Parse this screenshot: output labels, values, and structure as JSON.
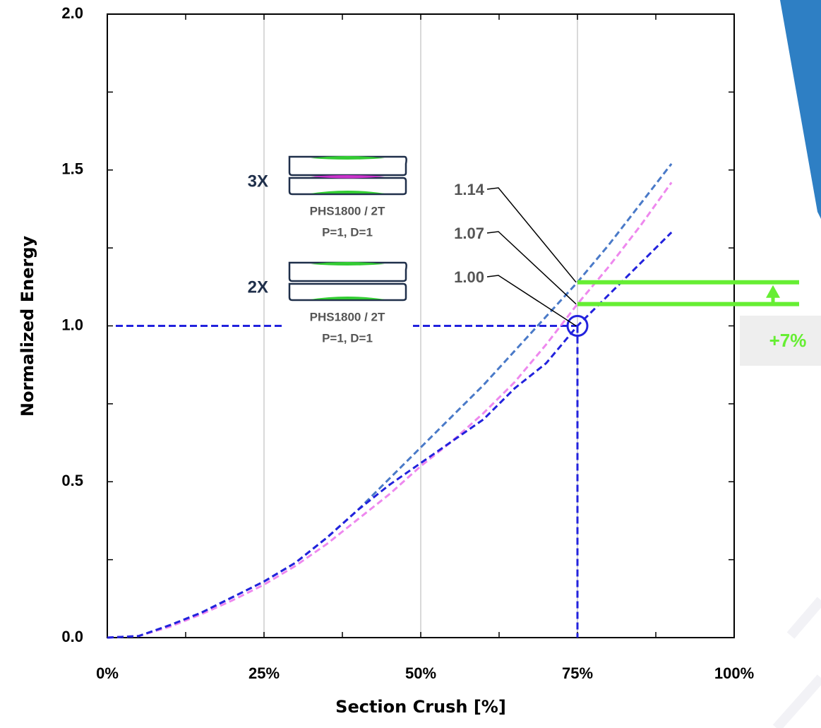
{
  "chart_data": {
    "type": "line",
    "x_label": "Section Crush [%]",
    "y_label": "Normalized Energy",
    "x": [
      0,
      5,
      10,
      15,
      20,
      25,
      30,
      35,
      40,
      45,
      50,
      55,
      60,
      65,
      70,
      75,
      80,
      85,
      90
    ],
    "series": [
      {
        "color": "#4a7ac8",
        "values": [
          0,
          0.005,
          0.04,
          0.08,
          0.13,
          0.18,
          0.24,
          0.32,
          0.41,
          0.51,
          0.61,
          0.71,
          0.81,
          0.92,
          1.03,
          1.14,
          1.26,
          1.39,
          1.52
        ]
      },
      {
        "color": "#ee88ee",
        "values": [
          0,
          0.005,
          0.035,
          0.075,
          0.12,
          0.17,
          0.23,
          0.3,
          0.38,
          0.46,
          0.55,
          0.63,
          0.72,
          0.82,
          0.94,
          1.07,
          1.19,
          1.32,
          1.46
        ]
      },
      {
        "color": "#2222dd",
        "values": [
          0,
          0.005,
          0.04,
          0.08,
          0.13,
          0.18,
          0.24,
          0.32,
          0.41,
          0.49,
          0.56,
          0.63,
          0.7,
          0.8,
          0.88,
          1.0,
          1.1,
          1.2,
          1.3
        ]
      }
    ],
    "xlim": [
      0,
      100
    ],
    "ylim": [
      0,
      2
    ],
    "xticks": [
      {
        "value": 0,
        "label": "0%"
      },
      {
        "value": 25,
        "label": "25%"
      },
      {
        "value": 50,
        "label": "50%"
      },
      {
        "value": 75,
        "label": "75%"
      },
      {
        "value": 100,
        "label": "100%"
      }
    ],
    "yticks": [
      {
        "value": 0,
        "label": "0.0"
      },
      {
        "value": 0.5,
        "label": "0.5"
      },
      {
        "value": 1,
        "label": "1.0"
      },
      {
        "value": 1.5,
        "label": "1.5"
      },
      {
        "value": 2,
        "label": "2.0"
      }
    ],
    "grid": "x",
    "reference": {
      "x": 75,
      "y": 1.0,
      "color": "#2222dd"
    },
    "callouts": [
      {
        "value": 1.14,
        "label": "1.14"
      },
      {
        "value": 1.07,
        "label": "1.07"
      },
      {
        "value": 1.0,
        "label": "1.00"
      }
    ],
    "difference": {
      "label": "+7%",
      "color": "#66ee33"
    },
    "insets": [
      {
        "tag": "3X",
        "material": "PHS1800 / 2T",
        "params": "P=1, D=1"
      },
      {
        "tag": "2X",
        "material": "PHS1800 / 2T",
        "params": "P=1, D=1"
      }
    ]
  }
}
